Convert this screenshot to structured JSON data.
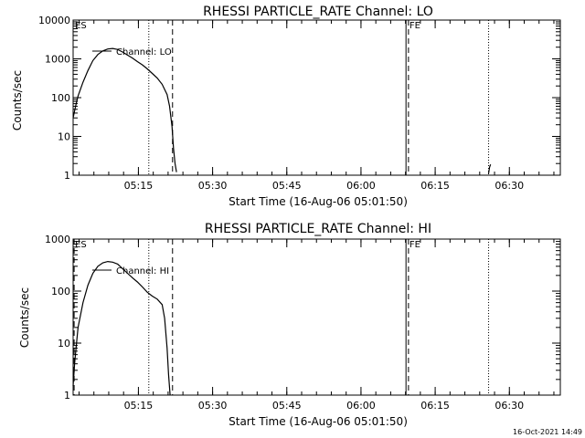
{
  "footer": {
    "timestamp": "16-Oct-2021 14:49"
  },
  "chart_data": [
    {
      "type": "line",
      "title": "RHESSI PARTICLE_RATE Channel: LO",
      "xlabel": "Start Time (16-Aug-06 05:01:50)",
      "ylabel": "Counts/sec",
      "yscale": "log",
      "xlim_minutes": [
        0,
        98.5
      ],
      "ylim": [
        1,
        10000
      ],
      "x_ticks": [
        {
          "t": 13.2,
          "label": "05:15"
        },
        {
          "t": 28.2,
          "label": "05:30"
        },
        {
          "t": 43.2,
          "label": "05:45"
        },
        {
          "t": 58.2,
          "label": "06:00"
        },
        {
          "t": 73.2,
          "label": "06:15"
        },
        {
          "t": 88.2,
          "label": "06:30"
        }
      ],
      "y_ticks": [
        {
          "v": 1,
          "label": "1"
        },
        {
          "v": 10,
          "label": "10"
        },
        {
          "v": 100,
          "label": "100"
        },
        {
          "v": 1000,
          "label": "1000"
        },
        {
          "v": 10000,
          "label": "10000"
        }
      ],
      "legend": {
        "label": "Channel: LO",
        "position": "top-left"
      },
      "markers": [
        {
          "t": 0.2,
          "label": "ES",
          "style": "dashed",
          "label_only": true
        },
        {
          "t": 15.3,
          "label": "",
          "style": "dotted"
        },
        {
          "t": 20.1,
          "label": "",
          "style": "dashed"
        },
        {
          "t": 67.3,
          "label": "",
          "style": "solid"
        },
        {
          "t": 67.8,
          "label": "FE",
          "style": "dashed"
        },
        {
          "t": 84.0,
          "label": "",
          "style": "dotted"
        }
      ],
      "series": [
        {
          "name": "Channel: LO",
          "segments": [
            [
              [
                0,
                30
              ],
              [
                0.5,
                60
              ],
              [
                1,
                110
              ],
              [
                2,
                250
              ],
              [
                3,
                500
              ],
              [
                4,
                900
              ],
              [
                5,
                1300
              ],
              [
                6,
                1600
              ],
              [
                7,
                1800
              ],
              [
                8,
                1850
              ],
              [
                9,
                1750
              ],
              [
                10,
                1500
              ],
              [
                11,
                1250
              ],
              [
                12,
                1050
              ],
              [
                13,
                850
              ],
              [
                14,
                700
              ],
              [
                15,
                550
              ],
              [
                16,
                420
              ],
              [
                17,
                320
              ],
              [
                18,
                220
              ],
              [
                19,
                120
              ],
              [
                19.5,
                60
              ],
              [
                20,
                18
              ],
              [
                20.3,
                5
              ],
              [
                20.6,
                2
              ],
              [
                20.9,
                1.2
              ]
            ],
            [
              [
                84.0,
                1.1
              ],
              [
                84.2,
                1.6
              ],
              [
                84.4,
                1.9
              ]
            ]
          ]
        }
      ]
    },
    {
      "type": "line",
      "title": "RHESSI PARTICLE_RATE Channel: HI",
      "xlabel": "Start Time (16-Aug-06 05:01:50)",
      "ylabel": "Counts/sec",
      "yscale": "log",
      "xlim_minutes": [
        0,
        98.5
      ],
      "ylim": [
        1,
        1000
      ],
      "x_ticks": [
        {
          "t": 13.2,
          "label": "05:15"
        },
        {
          "t": 28.2,
          "label": "05:30"
        },
        {
          "t": 43.2,
          "label": "05:45"
        },
        {
          "t": 58.2,
          "label": "06:00"
        },
        {
          "t": 73.2,
          "label": "06:15"
        },
        {
          "t": 88.2,
          "label": "06:30"
        }
      ],
      "y_ticks": [
        {
          "v": 1,
          "label": "1"
        },
        {
          "v": 10,
          "label": "10"
        },
        {
          "v": 100,
          "label": "100"
        },
        {
          "v": 1000,
          "label": "1000"
        }
      ],
      "legend": {
        "label": "Channel: HI",
        "position": "top-left"
      },
      "markers": [
        {
          "t": 0.2,
          "label": "ES",
          "style": "dashed"
        },
        {
          "t": 15.3,
          "label": "",
          "style": "dotted"
        },
        {
          "t": 20.1,
          "label": "",
          "style": "dashed"
        },
        {
          "t": 67.3,
          "label": "",
          "style": "solid"
        },
        {
          "t": 67.8,
          "label": "FE",
          "style": "dashed"
        },
        {
          "t": 84.0,
          "label": "",
          "style": "dotted"
        }
      ],
      "series": [
        {
          "name": "Channel: HI",
          "segments": [
            [
              [
                0,
                1.5
              ],
              [
                0.3,
                4
              ],
              [
                0.6,
                8
              ],
              [
                1,
                20
              ],
              [
                2,
                60
              ],
              [
                3,
                130
              ],
              [
                4,
                220
              ],
              [
                5,
                300
              ],
              [
                6,
                350
              ],
              [
                7,
                370
              ],
              [
                8,
                360
              ],
              [
                9,
                330
              ],
              [
                10,
                270
              ],
              [
                11,
                220
              ],
              [
                12,
                180
              ],
              [
                13,
                150
              ],
              [
                14,
                120
              ],
              [
                15,
                95
              ],
              [
                16,
                80
              ],
              [
                17,
                70
              ],
              [
                18,
                55
              ],
              [
                18.5,
                30
              ],
              [
                19,
                8
              ],
              [
                19.3,
                2.5
              ],
              [
                19.6,
                1
              ]
            ]
          ]
        }
      ]
    }
  ]
}
